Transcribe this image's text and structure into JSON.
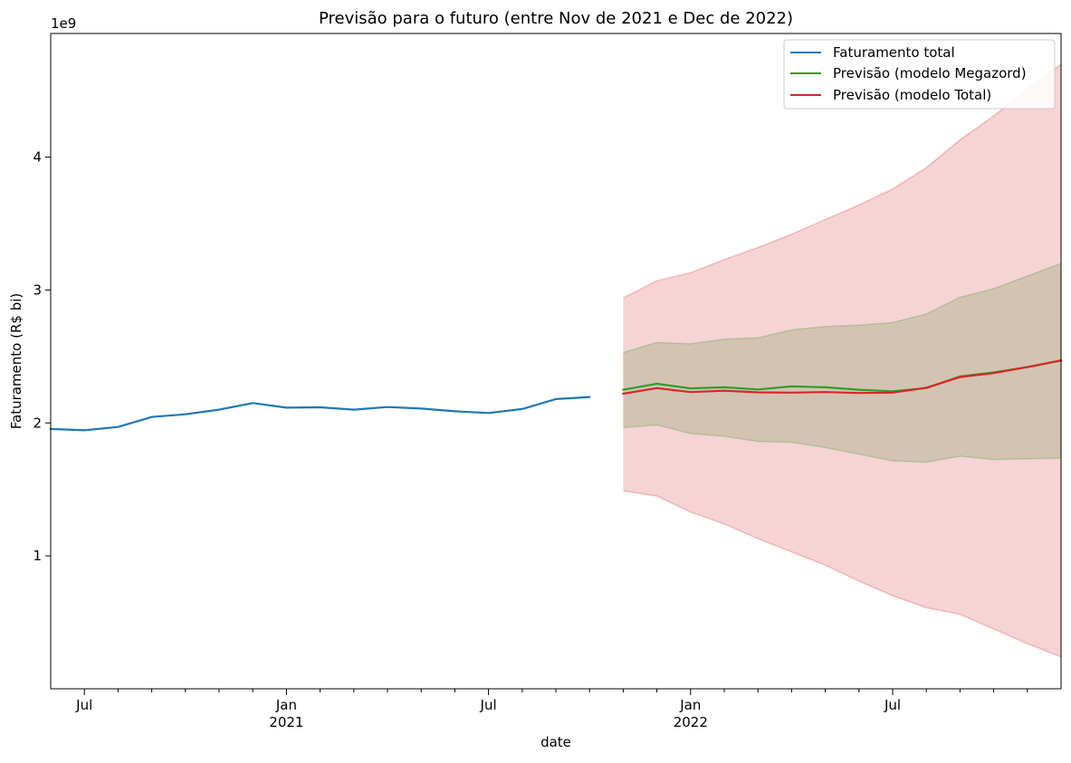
{
  "chart_data": {
    "type": "line",
    "title": "Previsão para o futuro (entre Nov de 2021 e Dec de 2022)",
    "xlabel": "date",
    "ylabel": "Faturamento (R$ bi)",
    "y_offset_label": "1e9",
    "xlim": [
      "2020-06",
      "2022-12"
    ],
    "ylim": [
      0.0,
      4.93
    ],
    "y_ticks": [
      1,
      2,
      3,
      4
    ],
    "x_major_ticks": [
      {
        "date": "2020-07",
        "label": "Jul"
      },
      {
        "date": "2021-01",
        "label": "Jan",
        "sublabel": "2021"
      },
      {
        "date": "2021-07",
        "label": "Jul"
      },
      {
        "date": "2022-01",
        "label": "Jan",
        "sublabel": "2022"
      },
      {
        "date": "2022-07",
        "label": "Jul"
      }
    ],
    "x_minor_ticks": [
      "2020-08",
      "2020-09",
      "2020-10",
      "2020-11",
      "2020-12",
      "2021-02",
      "2021-03",
      "2021-04",
      "2021-05",
      "2021-06",
      "2021-08",
      "2021-09",
      "2021-10",
      "2021-11",
      "2021-12",
      "2022-02",
      "2022-03",
      "2022-04",
      "2022-05",
      "2022-06",
      "2022-08",
      "2022-09",
      "2022-10",
      "2022-11"
    ],
    "grid": false,
    "legend_position": "top-right",
    "series": [
      {
        "name": "Faturamento total",
        "color": "#1f77b4",
        "x": [
          "2020-06",
          "2020-07",
          "2020-08",
          "2020-09",
          "2020-10",
          "2020-11",
          "2020-12",
          "2021-01",
          "2021-02",
          "2021-03",
          "2021-04",
          "2021-05",
          "2021-06",
          "2021-07",
          "2021-08",
          "2021-09",
          "2021-10"
        ],
        "values": [
          1.955,
          1.945,
          1.97,
          2.045,
          2.065,
          2.1,
          2.15,
          2.115,
          2.118,
          2.1,
          2.12,
          2.108,
          2.088,
          2.075,
          2.105,
          2.18,
          2.195
        ]
      },
      {
        "name": "Previsão (modelo Megazord)",
        "color": "#2ca02c",
        "x": [
          "2021-11",
          "2021-12",
          "2022-01",
          "2022-02",
          "2022-03",
          "2022-04",
          "2022-05",
          "2022-06",
          "2022-07",
          "2022-08",
          "2022-09",
          "2022-10",
          "2022-11",
          "2022-12"
        ],
        "values": [
          2.25,
          2.295,
          2.26,
          2.268,
          2.252,
          2.275,
          2.268,
          2.25,
          2.238,
          2.262,
          2.35,
          2.38,
          2.42,
          2.47
        ]
      },
      {
        "name": "Previsão (modelo Total)",
        "color": "#d62728",
        "x": [
          "2021-11",
          "2021-12",
          "2022-01",
          "2022-02",
          "2022-03",
          "2022-04",
          "2022-05",
          "2022-06",
          "2022-07",
          "2022-08",
          "2022-09",
          "2022-10",
          "2022-11",
          "2022-12"
        ],
        "values": [
          2.22,
          2.262,
          2.232,
          2.242,
          2.23,
          2.228,
          2.232,
          2.225,
          2.228,
          2.265,
          2.345,
          2.375,
          2.42,
          2.47
        ]
      }
    ],
    "intervals": [
      {
        "color": "#d62728",
        "fill_color": "#f6d3d5",
        "x": [
          "2021-11",
          "2021-12",
          "2022-01",
          "2022-02",
          "2022-03",
          "2022-04",
          "2022-05",
          "2022-06",
          "2022-07",
          "2022-08",
          "2022-09",
          "2022-10",
          "2022-11",
          "2022-12"
        ],
        "upper": [
          2.94,
          3.07,
          3.13,
          3.23,
          3.32,
          3.42,
          3.53,
          3.64,
          3.76,
          3.92,
          4.13,
          4.31,
          4.51,
          4.7
        ],
        "lower": [
          1.49,
          1.45,
          1.33,
          1.24,
          1.13,
          1.03,
          0.93,
          0.81,
          0.7,
          0.61,
          0.56,
          0.45,
          0.34,
          0.24
        ]
      },
      {
        "color": "#2ca02c",
        "fill_color": "#d4c3b2",
        "x": [
          "2021-11",
          "2021-12",
          "2022-01",
          "2022-02",
          "2022-03",
          "2022-04",
          "2022-05",
          "2022-06",
          "2022-07",
          "2022-08",
          "2022-09",
          "2022-10",
          "2022-11",
          "2022-12"
        ],
        "upper": [
          2.53,
          2.605,
          2.595,
          2.63,
          2.64,
          2.7,
          2.725,
          2.735,
          2.755,
          2.82,
          2.945,
          3.01,
          3.105,
          3.2
        ],
        "lower": [
          1.965,
          1.985,
          1.92,
          1.9,
          1.86,
          1.855,
          1.815,
          1.765,
          1.715,
          1.705,
          1.75,
          1.725,
          1.73,
          1.735
        ]
      }
    ]
  }
}
